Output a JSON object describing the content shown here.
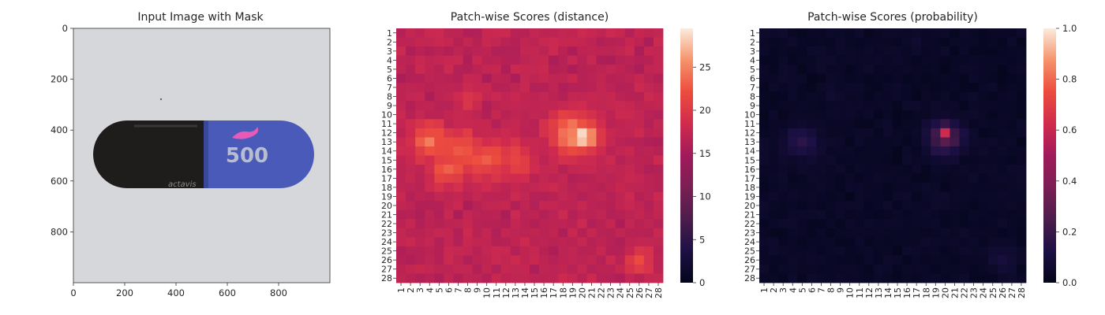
{
  "figure": {
    "panels": [
      {
        "title": "Input Image with Mask",
        "xticks": [
          0,
          200,
          400,
          600,
          800
        ],
        "yticks": [
          0,
          200,
          400,
          600,
          800
        ],
        "xlim": [
          0,
          1000
        ],
        "ylim": [
          1000,
          0
        ]
      },
      {
        "title": "Patch-wise Scores (distance)",
        "colorbar_ticks": [
          0,
          5,
          10,
          15,
          20,
          25
        ],
        "colorbar_range": [
          0,
          29.5
        ]
      },
      {
        "title": "Patch-wise Scores (probability)",
        "colorbar_ticks": [
          "0.0",
          "0.2",
          "0.4",
          "0.6",
          "0.8",
          "1.0"
        ],
        "colorbar_range": [
          0,
          1
        ]
      }
    ],
    "image": {
      "capsule_print": "500",
      "brand_print": "actavis",
      "colors": {
        "background": "#d6d7db",
        "cap_dark": "#1f1c1c",
        "body_blue": "#4a5ab8",
        "print_gray": "#b9bdd0",
        "mark_pink": "#e85ab8"
      }
    }
  },
  "chart_data": [
    {
      "type": "heatmap",
      "title": "Patch-wise Scores (distance)",
      "rows": 28,
      "cols": 28,
      "row_labels": [
        "1",
        "2",
        "3",
        "4",
        "5",
        "6",
        "7",
        "8",
        "9",
        "10",
        "11",
        "12",
        "13",
        "14",
        "15",
        "16",
        "17",
        "18",
        "19",
        "20",
        "21",
        "22",
        "23",
        "24",
        "25",
        "26",
        "27",
        "28"
      ],
      "col_labels": [
        "1",
        "2",
        "3",
        "4",
        "5",
        "6",
        "7",
        "8",
        "9",
        "10",
        "11",
        "12",
        "13",
        "14",
        "15",
        "16",
        "17",
        "18",
        "19",
        "20",
        "21",
        "22",
        "23",
        "24",
        "25",
        "26",
        "27",
        "28"
      ],
      "vmin": 0,
      "vmax": 29.5,
      "colormap": "rocket",
      "base_value": 16.5,
      "hotspots": [
        {
          "row": 12.5,
          "col": 20,
          "peak": 29.5,
          "radius": 1.6
        },
        {
          "row": 12,
          "col": 19,
          "peak": 25,
          "radius": 2.6
        },
        {
          "row": 13,
          "col": 4,
          "peak": 24,
          "radius": 2.2
        },
        {
          "row": 14,
          "col": 7,
          "peak": 23,
          "radius": 2.6
        },
        {
          "row": 15,
          "col": 10,
          "peak": 22.5,
          "radius": 2.4
        },
        {
          "row": 16,
          "col": 6,
          "peak": 23,
          "radius": 2.0
        },
        {
          "row": 15,
          "col": 13,
          "peak": 21.5,
          "radius": 2.2
        },
        {
          "row": 26,
          "col": 26,
          "peak": 21,
          "radius": 1.6
        },
        {
          "row": 8,
          "col": 8,
          "peak": 20,
          "radius": 1.4
        }
      ]
    },
    {
      "type": "heatmap",
      "title": "Patch-wise Scores (probability)",
      "rows": 28,
      "cols": 28,
      "row_labels": [
        "1",
        "2",
        "3",
        "4",
        "5",
        "6",
        "7",
        "8",
        "9",
        "10",
        "11",
        "12",
        "13",
        "14",
        "15",
        "16",
        "17",
        "18",
        "19",
        "20",
        "21",
        "22",
        "23",
        "24",
        "25",
        "26",
        "27",
        "28"
      ],
      "col_labels": [
        "1",
        "2",
        "3",
        "4",
        "5",
        "6",
        "7",
        "8",
        "9",
        "10",
        "11",
        "12",
        "13",
        "14",
        "15",
        "16",
        "17",
        "18",
        "19",
        "20",
        "21",
        "22",
        "23",
        "24",
        "25",
        "26",
        "27",
        "28"
      ],
      "vmin": 0,
      "vmax": 1,
      "colormap": "rocket",
      "base_value": 0.03,
      "hotspots": [
        {
          "row": 12,
          "col": 20,
          "peak": 0.6,
          "radius": 0.9
        },
        {
          "row": 12.5,
          "col": 20,
          "peak": 0.3,
          "radius": 1.8
        },
        {
          "row": 13,
          "col": 5,
          "peak": 0.17,
          "radius": 1.8
        },
        {
          "row": 26,
          "col": 26,
          "peak": 0.1,
          "radius": 1.4
        },
        {
          "row": 8,
          "col": 8,
          "peak": 0.08,
          "radius": 0.9
        },
        {
          "row": 2,
          "col": 17,
          "peak": 0.06,
          "radius": 0.9
        }
      ]
    }
  ]
}
